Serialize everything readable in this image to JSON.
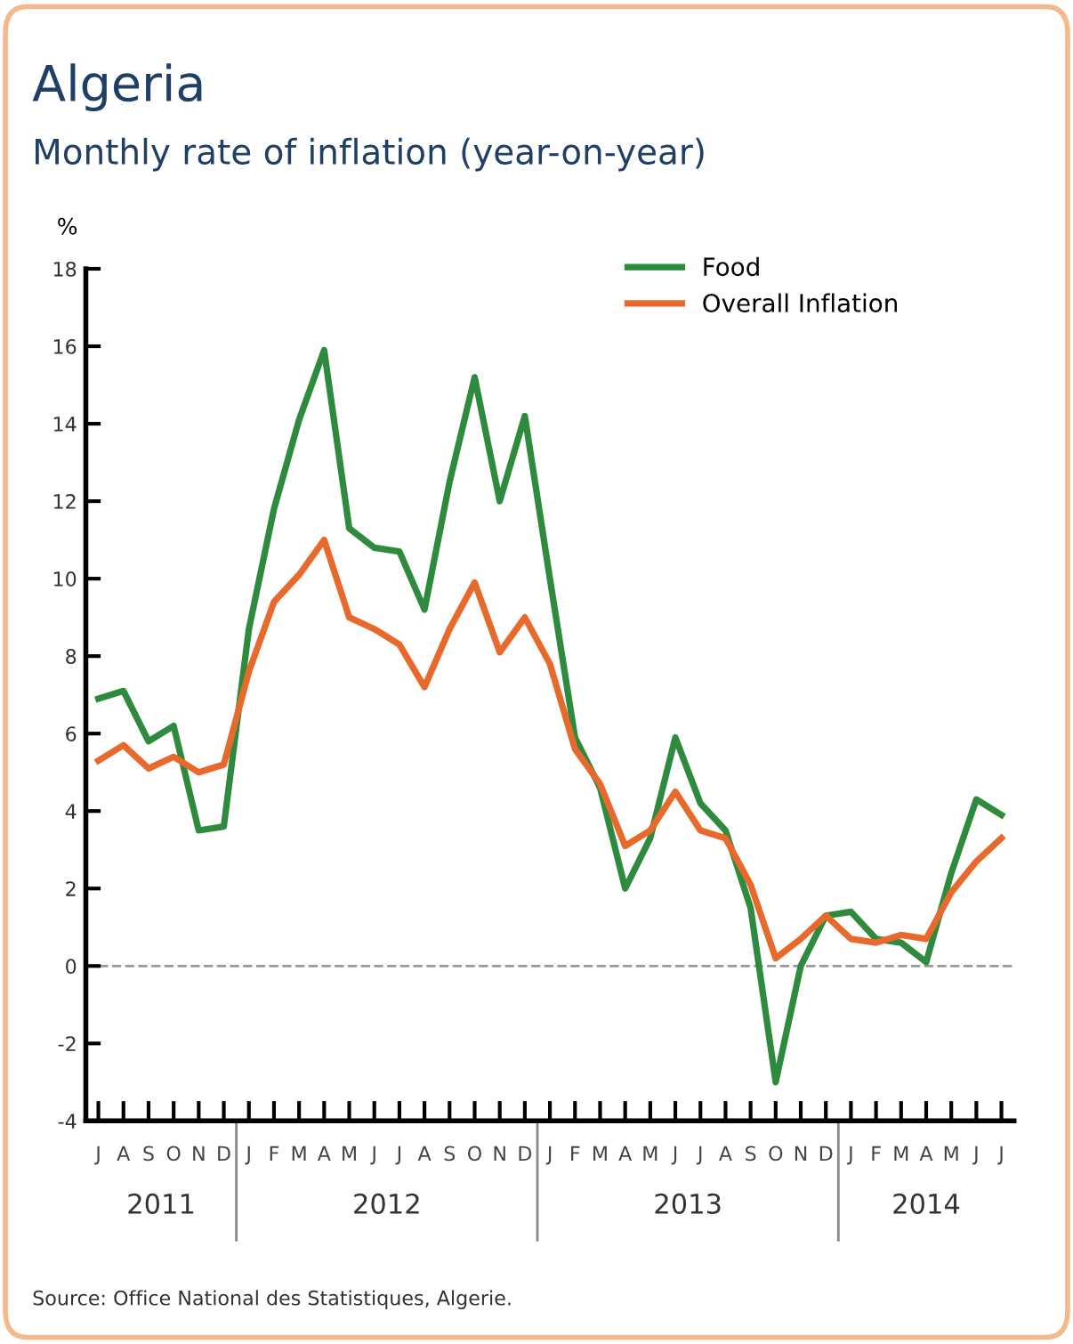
{
  "chart_data": {
    "type": "line",
    "title": "Algeria",
    "subtitle": "Monthly rate of inflation (year-on-year)",
    "ylabel": "%",
    "categories": [
      "J",
      "A",
      "S",
      "O",
      "N",
      "D",
      "J",
      "F",
      "M",
      "A",
      "M",
      "J",
      "J",
      "A",
      "S",
      "O",
      "N",
      "D",
      "J",
      "F",
      "M",
      "A",
      "M",
      "J",
      "J",
      "A",
      "S",
      "O",
      "N",
      "D",
      "J",
      "F",
      "M",
      "A",
      "M",
      "J",
      "J"
    ],
    "series": [
      {
        "name": "Food",
        "color": "#2e8b3e",
        "values": [
          6.9,
          7.1,
          5.8,
          6.2,
          3.5,
          3.6,
          8.7,
          11.8,
          14.1,
          15.9,
          11.3,
          10.8,
          10.7,
          9.2,
          12.5,
          15.2,
          12.0,
          14.2,
          10.0,
          5.9,
          4.6,
          2.0,
          3.3,
          5.9,
          4.2,
          3.5,
          1.5,
          -3.0,
          0.0,
          1.3,
          1.4,
          0.7,
          0.6,
          0.1,
          2.4,
          4.3,
          3.9
        ]
      },
      {
        "name": "Overall Inflation",
        "color": "#e8692c",
        "values": [
          5.3,
          5.7,
          5.1,
          5.4,
          5.0,
          5.2,
          7.6,
          9.4,
          10.1,
          11.0,
          9.0,
          8.7,
          8.3,
          7.2,
          8.7,
          9.9,
          8.1,
          9.0,
          7.8,
          5.6,
          4.7,
          3.1,
          3.5,
          4.5,
          3.5,
          3.3,
          2.1,
          0.2,
          0.7,
          1.3,
          0.7,
          0.6,
          0.8,
          0.7,
          1.9,
          2.7,
          3.3
        ]
      }
    ],
    "ylim": [
      -4,
      18
    ],
    "yticks": [
      -4,
      -2,
      0,
      2,
      4,
      6,
      8,
      10,
      12,
      14,
      16,
      18
    ],
    "ref_lines": [
      {
        "axis": "y",
        "value": 0,
        "color": "#999999",
        "line_style": "dashed"
      }
    ],
    "annotations": [
      "2011",
      "2012",
      "2013",
      "2014",
      "Source: Office National des Statistiques, Algerie."
    ],
    "legend": "top right",
    "grid": false,
    "marker": "none",
    "line_style": "solid"
  }
}
